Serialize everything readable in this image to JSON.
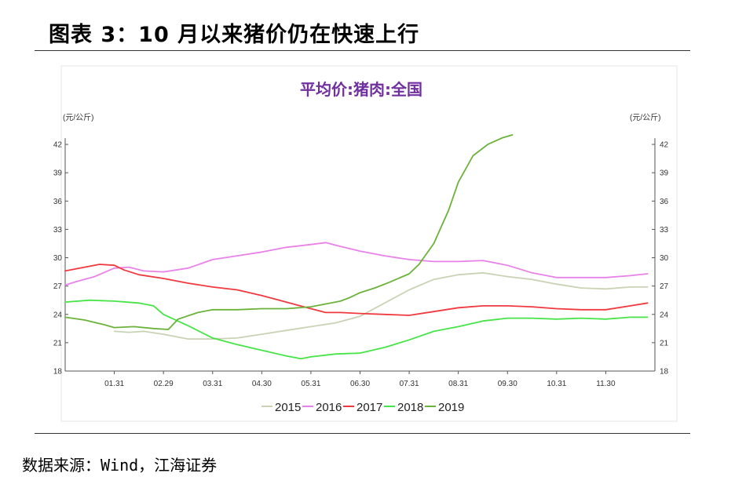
{
  "figure_title": "图表 3：10 月以来猪价仍在快速上行",
  "source": "数据来源：Wind，江海证券",
  "chart_data": {
    "type": "line",
    "title": "平均价:猪肉:全国",
    "ylabel_left": "(元/公斤)",
    "ylabel_right": "(元/公斤)",
    "ylim": [
      18,
      44
    ],
    "yticks": [
      18,
      21,
      24,
      27,
      30,
      33,
      36,
      39,
      42
    ],
    "xlim": [
      0,
      12
    ],
    "xtick_labels": [
      "01.31",
      "02.29",
      "03.31",
      "04.30",
      "05.31",
      "06.30",
      "07.31",
      "08.31",
      "09.30",
      "10.31",
      "11.30"
    ],
    "xtick_positions": [
      1,
      2,
      3,
      4,
      5,
      6,
      7,
      8,
      9,
      10,
      11
    ],
    "grid": false,
    "legend_position": "bottom",
    "series": [
      {
        "name": "2015",
        "color": "#c9d3b4",
        "x": [
          1.0,
          1.3,
          1.6,
          2.0,
          2.5,
          3.0,
          3.5,
          4.0,
          4.5,
          5.0,
          5.5,
          6.0,
          6.5,
          7.0,
          7.5,
          8.0,
          8.5,
          9.0,
          9.5,
          10.0,
          10.5,
          11.0,
          11.5,
          11.85
        ],
        "y": [
          22.2,
          22.1,
          22.2,
          21.9,
          21.4,
          21.4,
          21.5,
          21.9,
          22.3,
          22.7,
          23.1,
          23.8,
          25.2,
          26.6,
          27.7,
          28.2,
          28.4,
          28.0,
          27.7,
          27.2,
          26.8,
          26.7,
          26.9,
          26.9
        ]
      },
      {
        "name": "2016",
        "color": "#e882e8",
        "x": [
          0.0,
          0.25,
          0.6,
          1.0,
          1.3,
          1.6,
          2.0,
          2.5,
          3.0,
          3.5,
          4.0,
          4.5,
          5.0,
          5.3,
          5.6,
          6.0,
          6.5,
          7.0,
          7.5,
          8.0,
          8.5,
          9.0,
          9.5,
          10.0,
          10.5,
          11.0,
          11.5,
          11.85
        ],
        "y": [
          27.1,
          27.5,
          28.0,
          28.9,
          29.0,
          28.6,
          28.5,
          28.9,
          29.8,
          30.2,
          30.6,
          31.1,
          31.4,
          31.6,
          31.2,
          30.7,
          30.2,
          29.8,
          29.6,
          29.6,
          29.7,
          29.2,
          28.4,
          27.9,
          27.9,
          27.9,
          28.1,
          28.3
        ]
      },
      {
        "name": "2017",
        "color": "#f0393f",
        "x": [
          0.0,
          0.3,
          0.7,
          1.0,
          1.2,
          1.5,
          2.0,
          2.5,
          3.0,
          3.5,
          4.0,
          4.5,
          5.0,
          5.3,
          5.6,
          6.0,
          6.5,
          7.0,
          7.5,
          8.0,
          8.5,
          9.0,
          9.5,
          10.0,
          10.5,
          11.0,
          11.5,
          11.85
        ],
        "y": [
          28.6,
          28.9,
          29.3,
          29.2,
          28.7,
          28.2,
          27.8,
          27.3,
          26.9,
          26.6,
          26.0,
          25.3,
          24.6,
          24.2,
          24.2,
          24.1,
          24.0,
          23.9,
          24.3,
          24.7,
          24.9,
          24.9,
          24.8,
          24.6,
          24.5,
          24.5,
          24.9,
          25.2
        ]
      },
      {
        "name": "2018",
        "color": "#47e447",
        "x": [
          0.0,
          0.5,
          1.0,
          1.5,
          1.8,
          2.0,
          2.5,
          3.0,
          3.5,
          4.0,
          4.5,
          4.8,
          5.0,
          5.5,
          6.0,
          6.5,
          7.0,
          7.5,
          8.0,
          8.5,
          9.0,
          9.5,
          10.0,
          10.5,
          11.0,
          11.5,
          11.85
        ],
        "y": [
          25.3,
          25.5,
          25.4,
          25.2,
          24.9,
          24.0,
          22.8,
          21.5,
          20.8,
          20.2,
          19.6,
          19.3,
          19.5,
          19.8,
          19.9,
          20.5,
          21.3,
          22.2,
          22.7,
          23.3,
          23.6,
          23.6,
          23.5,
          23.6,
          23.5,
          23.7,
          23.7
        ]
      },
      {
        "name": "2019",
        "color": "#6bb23a",
        "x": [
          0.0,
          0.4,
          0.8,
          1.0,
          1.4,
          1.8,
          2.1,
          2.3,
          2.7,
          3.0,
          3.5,
          4.0,
          4.5,
          5.0,
          5.3,
          5.6,
          5.8,
          6.0,
          6.3,
          6.6,
          7.0,
          7.2,
          7.5,
          7.8,
          8.0,
          8.3,
          8.6,
          8.9,
          9.1
        ],
        "y": [
          23.7,
          23.4,
          22.9,
          22.6,
          22.7,
          22.5,
          22.4,
          23.5,
          24.2,
          24.5,
          24.5,
          24.6,
          24.6,
          24.8,
          25.1,
          25.4,
          25.8,
          26.3,
          26.8,
          27.4,
          28.3,
          29.3,
          31.5,
          35.0,
          38.0,
          40.8,
          42.0,
          42.7,
          43.0
        ]
      }
    ]
  }
}
